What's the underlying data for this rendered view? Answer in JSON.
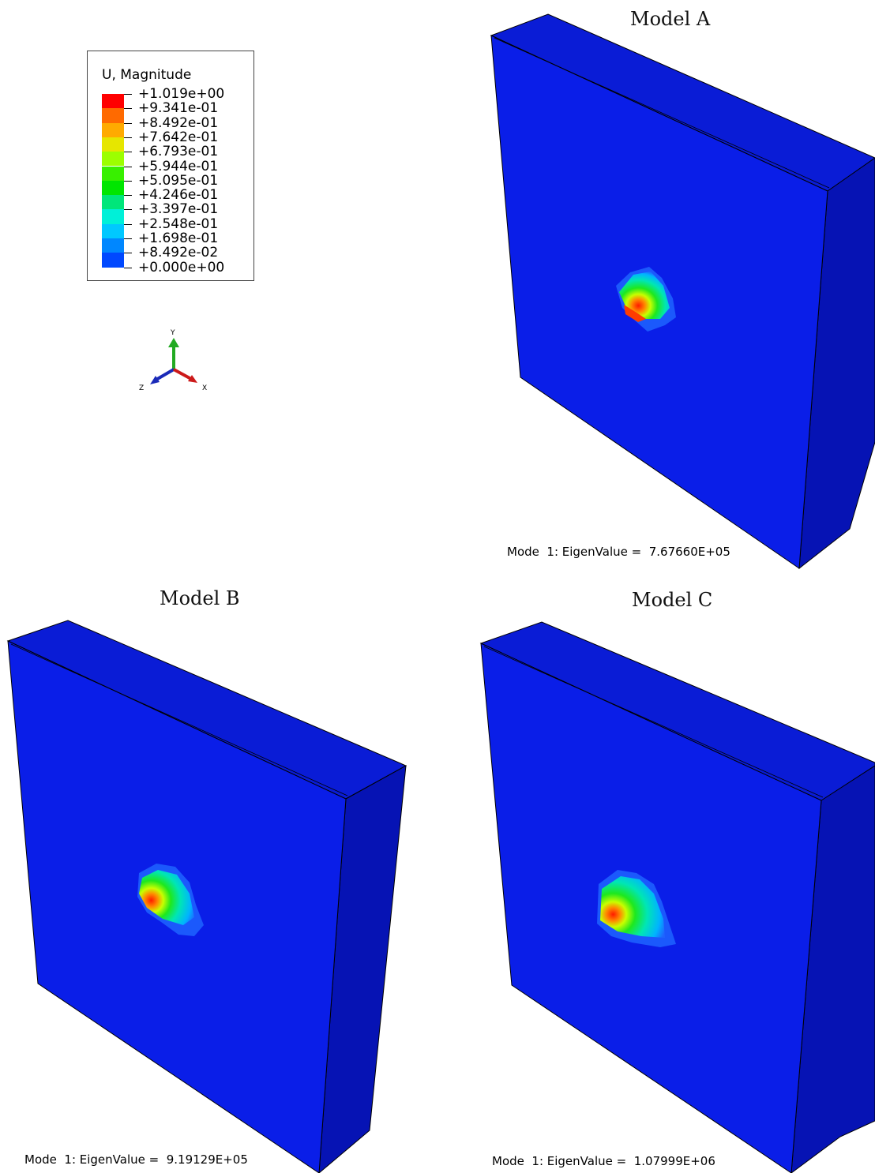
{
  "legend": {
    "title": "U, Magnitude",
    "labels": [
      "+1.019e+00",
      "+9.341e-01",
      "+8.492e-01",
      "+7.642e-01",
      "+6.793e-01",
      "+5.944e-01",
      "+5.095e-01",
      "+4.246e-01",
      "+3.397e-01",
      "+2.548e-01",
      "+1.698e-01",
      "+8.492e-02",
      "+0.000e+00"
    ],
    "colors": [
      "#ff0000",
      "#ff6a00",
      "#ffaa00",
      "#e6e600",
      "#9cff00",
      "#38f000",
      "#00e600",
      "#00e67a",
      "#00f0d8",
      "#00c8ff",
      "#0087ff",
      "#0048ff"
    ]
  },
  "axes": {
    "x": "X",
    "y": "Y",
    "z": "Z"
  },
  "models": [
    {
      "title": "Model A",
      "mode_text": "Mode  1: EigenValue =  7.67660E+05"
    },
    {
      "title": "Model B",
      "mode_text": "Mode  1: EigenValue =  9.19129E+05"
    },
    {
      "title": "Model C",
      "mode_text": "Mode  1: EigenValue =  1.07999E+06"
    }
  ],
  "colors": {
    "face": "#0a1ee8",
    "top": "#0a1cd6",
    "side": "#0613b4"
  }
}
